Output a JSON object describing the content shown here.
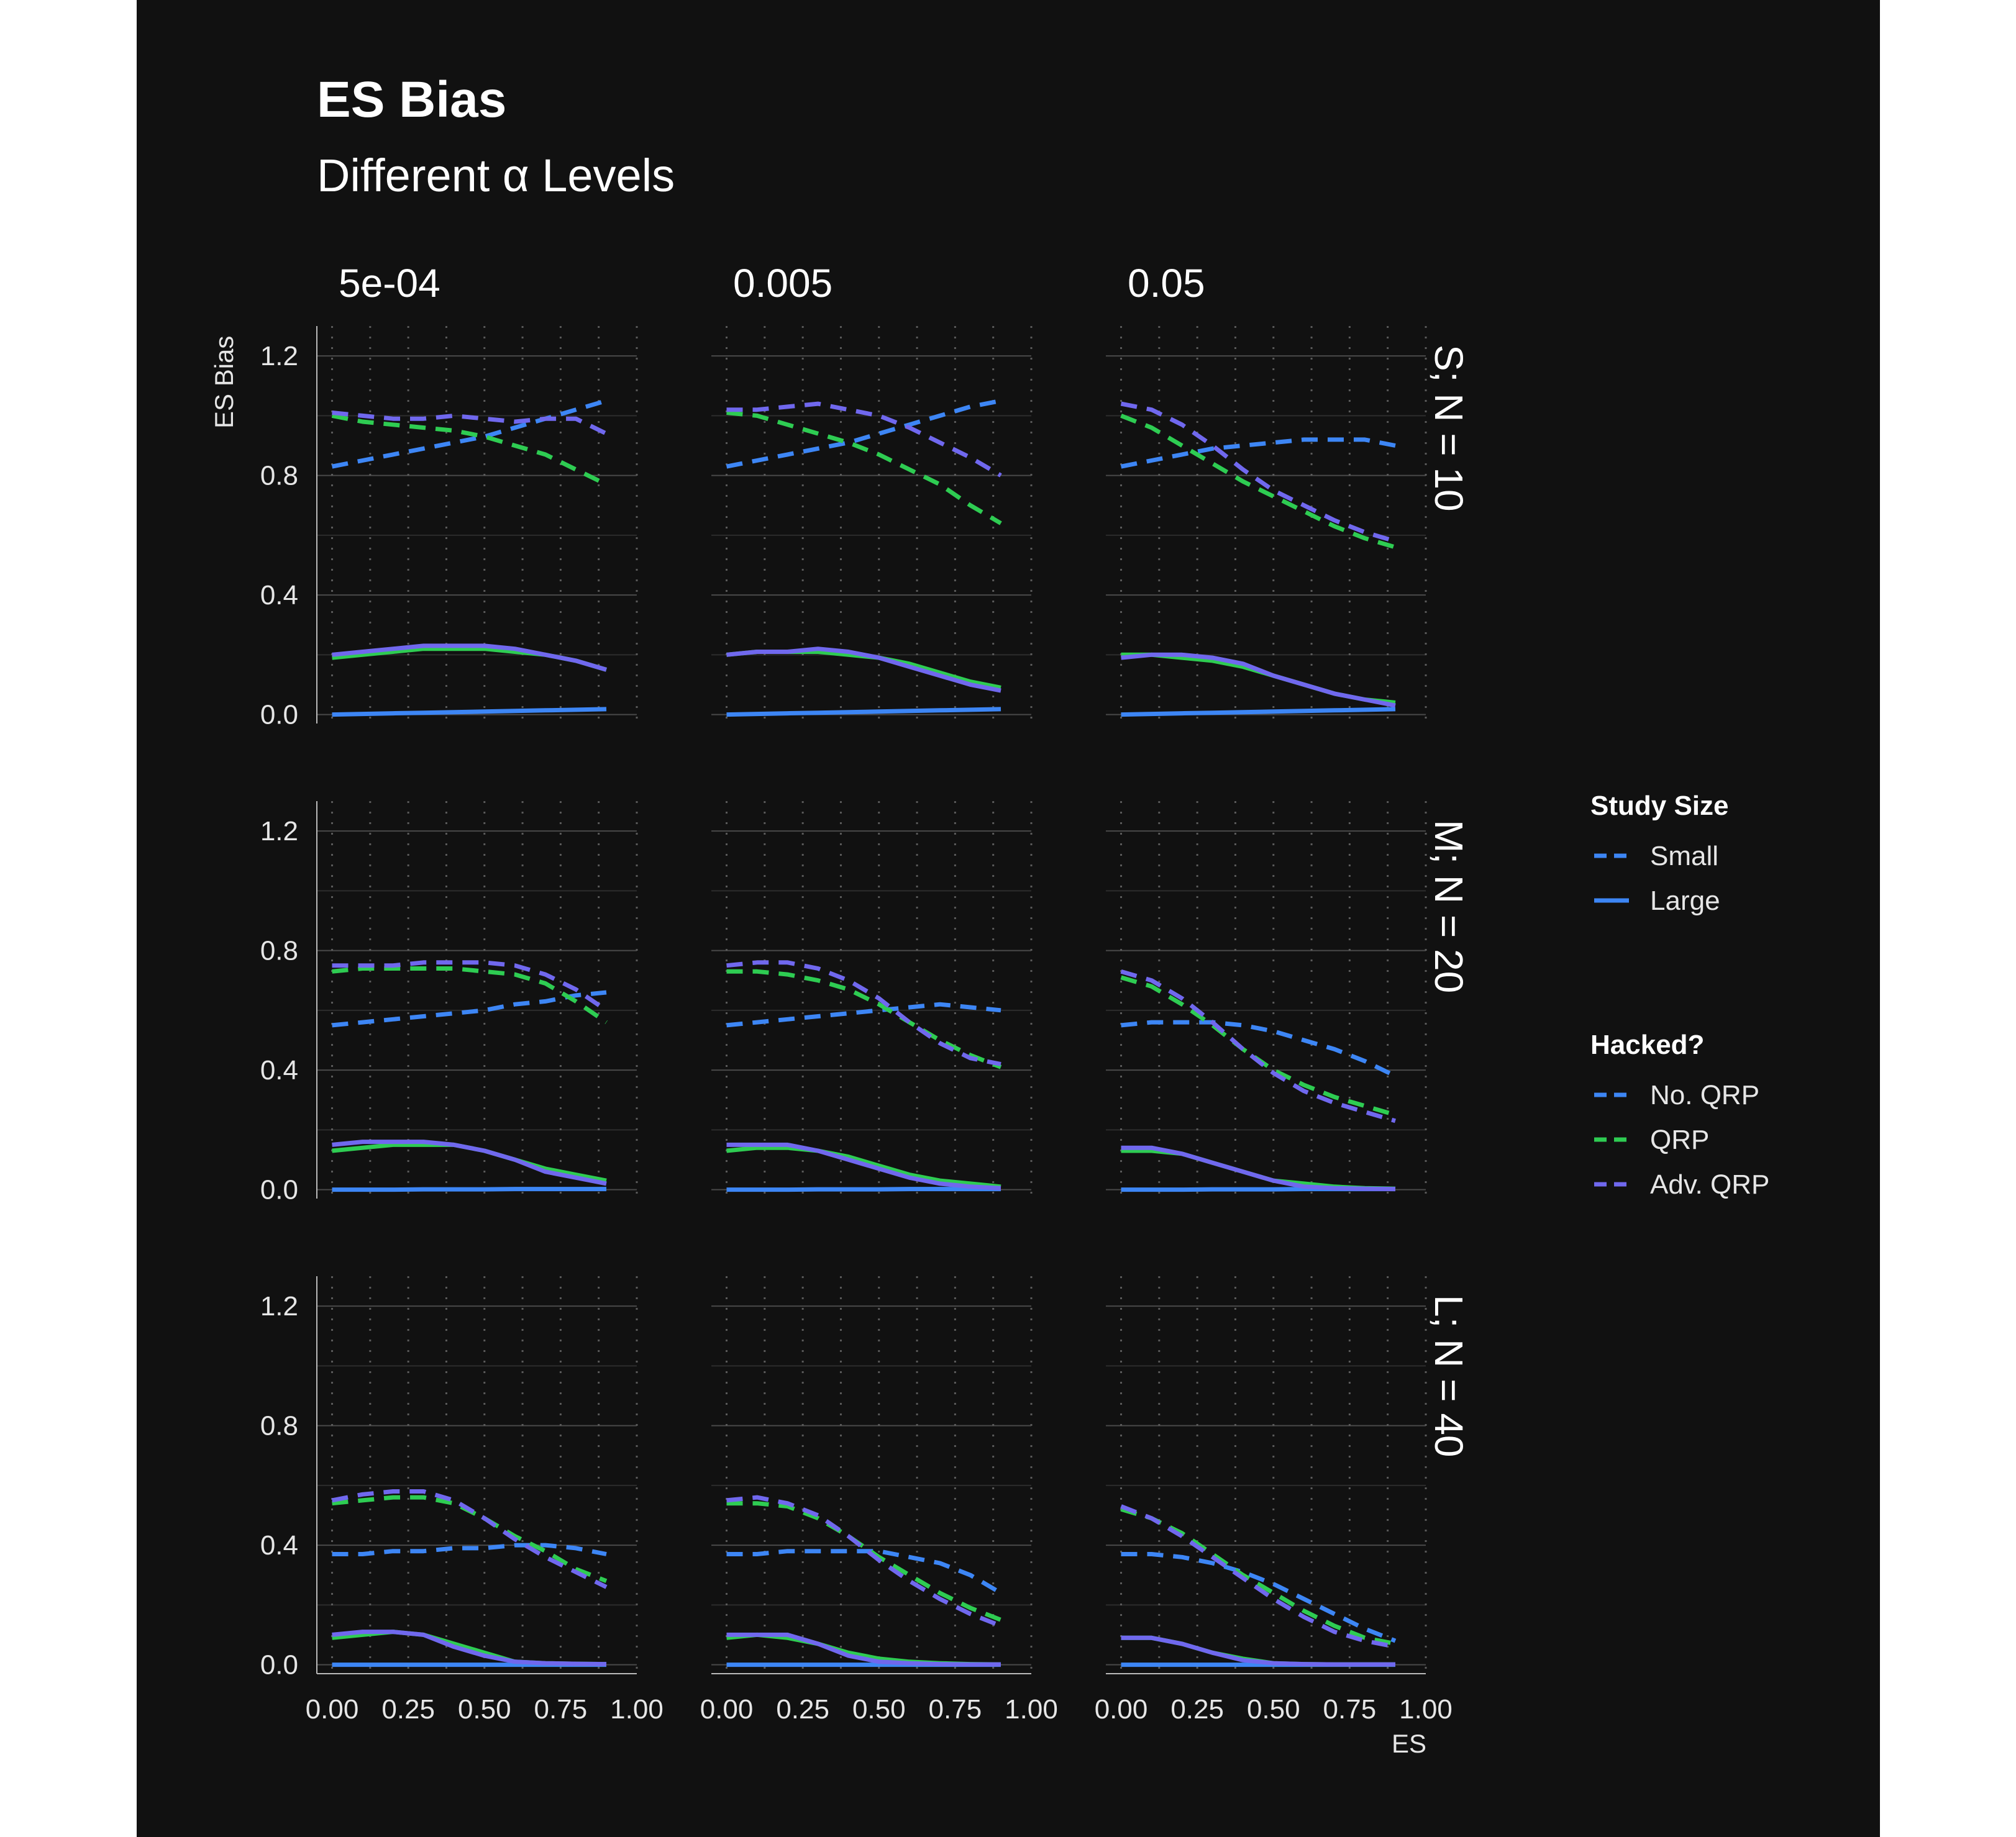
{
  "title": "ES Bias",
  "subtitle": "Different α Levels",
  "colors": {
    "background": "#111111",
    "no_qrp": "#3d86f5",
    "qrp": "#2ecc52",
    "adv_qrp": "#7068ee",
    "grid": "#4a4a4a",
    "axis": "#bbbbbb"
  },
  "chart_data": {
    "type": "line",
    "xlabel": "ES",
    "ylabel": "ES Bias",
    "xlim": [
      -0.05,
      1.0
    ],
    "ylim": [
      -0.03,
      1.3
    ],
    "x_ticks": [
      "0.00",
      "0.25",
      "0.50",
      "0.75",
      "1.00"
    ],
    "y_ticks": [
      "0.0",
      "0.4",
      "0.8",
      "1.2"
    ],
    "grid": true,
    "facet_columns": [
      "5e-04",
      "0.005",
      "0.05"
    ],
    "facet_rows": [
      "S; N = 10",
      "M; N = 20",
      "L; N = 40"
    ],
    "x": [
      0.0,
      0.1,
      0.2,
      0.3,
      0.4,
      0.5,
      0.6,
      0.7,
      0.8,
      0.9
    ],
    "linetype_legend": {
      "title": "Study Size",
      "entries": [
        "Small",
        "Large"
      ]
    },
    "color_legend": {
      "title": "Hacked?",
      "entries": [
        "No. QRP",
        "QRP",
        "Adv. QRP"
      ]
    },
    "panels": [
      {
        "column": "5e-04",
        "row": "S; N = 10",
        "series": [
          {
            "name": "No. QRP",
            "size": "Small",
            "values": [
              0.83,
              0.85,
              0.87,
              0.89,
              0.91,
              0.93,
              0.96,
              0.99,
              1.02,
              1.05
            ]
          },
          {
            "name": "QRP",
            "size": "Small",
            "values": [
              1.0,
              0.98,
              0.97,
              0.96,
              0.95,
              0.93,
              0.9,
              0.87,
              0.82,
              0.77
            ]
          },
          {
            "name": "Adv. QRP",
            "size": "Small",
            "values": [
              1.01,
              1.0,
              0.99,
              0.99,
              1.0,
              0.99,
              0.98,
              0.99,
              0.99,
              0.94
            ]
          },
          {
            "name": "No. QRP",
            "size": "Large",
            "values": [
              0.0,
              0.002,
              0.004,
              0.006,
              0.008,
              0.01,
              0.012,
              0.014,
              0.016,
              0.018
            ]
          },
          {
            "name": "QRP",
            "size": "Large",
            "values": [
              0.19,
              0.2,
              0.21,
              0.22,
              0.22,
              0.22,
              0.21,
              0.2,
              0.18,
              0.15
            ]
          },
          {
            "name": "Adv. QRP",
            "size": "Large",
            "values": [
              0.2,
              0.21,
              0.22,
              0.23,
              0.23,
              0.23,
              0.22,
              0.2,
              0.18,
              0.15
            ]
          }
        ]
      },
      {
        "column": "0.005",
        "row": "S; N = 10",
        "series": [
          {
            "name": "No. QRP",
            "size": "Small",
            "values": [
              0.83,
              0.85,
              0.87,
              0.89,
              0.91,
              0.94,
              0.97,
              1.0,
              1.03,
              1.05
            ]
          },
          {
            "name": "QRP",
            "size": "Small",
            "values": [
              1.01,
              1.0,
              0.97,
              0.94,
              0.91,
              0.87,
              0.82,
              0.77,
              0.7,
              0.64
            ]
          },
          {
            "name": "Adv. QRP",
            "size": "Small",
            "values": [
              1.02,
              1.02,
              1.03,
              1.04,
              1.02,
              1.0,
              0.96,
              0.91,
              0.86,
              0.8
            ]
          },
          {
            "name": "No. QRP",
            "size": "Large",
            "values": [
              0.0,
              0.002,
              0.004,
              0.006,
              0.008,
              0.01,
              0.012,
              0.014,
              0.016,
              0.018
            ]
          },
          {
            "name": "QRP",
            "size": "Large",
            "values": [
              0.2,
              0.21,
              0.21,
              0.21,
              0.2,
              0.19,
              0.17,
              0.14,
              0.11,
              0.09
            ]
          },
          {
            "name": "Adv. QRP",
            "size": "Large",
            "values": [
              0.2,
              0.21,
              0.21,
              0.22,
              0.21,
              0.19,
              0.16,
              0.13,
              0.1,
              0.08
            ]
          }
        ]
      },
      {
        "column": "0.05",
        "row": "S; N = 10",
        "series": [
          {
            "name": "No. QRP",
            "size": "Small",
            "values": [
              0.83,
              0.85,
              0.87,
              0.89,
              0.9,
              0.91,
              0.92,
              0.92,
              0.92,
              0.9
            ]
          },
          {
            "name": "QRP",
            "size": "Small",
            "values": [
              1.0,
              0.96,
              0.9,
              0.84,
              0.78,
              0.73,
              0.68,
              0.63,
              0.59,
              0.56
            ]
          },
          {
            "name": "Adv. QRP",
            "size": "Small",
            "values": [
              1.04,
              1.02,
              0.97,
              0.9,
              0.82,
              0.75,
              0.7,
              0.65,
              0.61,
              0.58
            ]
          },
          {
            "name": "No. QRP",
            "size": "Large",
            "values": [
              0.0,
              0.002,
              0.004,
              0.006,
              0.008,
              0.01,
              0.012,
              0.014,
              0.016,
              0.018
            ]
          },
          {
            "name": "QRP",
            "size": "Large",
            "values": [
              0.2,
              0.2,
              0.19,
              0.18,
              0.16,
              0.13,
              0.1,
              0.07,
              0.05,
              0.04
            ]
          },
          {
            "name": "Adv. QRP",
            "size": "Large",
            "values": [
              0.19,
              0.2,
              0.2,
              0.19,
              0.17,
              0.13,
              0.1,
              0.07,
              0.05,
              0.03
            ]
          }
        ]
      },
      {
        "column": "5e-04",
        "row": "M; N = 20",
        "series": [
          {
            "name": "No. QRP",
            "size": "Small",
            "values": [
              0.55,
              0.56,
              0.57,
              0.58,
              0.59,
              0.6,
              0.62,
              0.63,
              0.65,
              0.66
            ]
          },
          {
            "name": "QRP",
            "size": "Small",
            "values": [
              0.73,
              0.74,
              0.74,
              0.74,
              0.74,
              0.73,
              0.72,
              0.69,
              0.63,
              0.56
            ]
          },
          {
            "name": "Adv. QRP",
            "size": "Small",
            "values": [
              0.75,
              0.75,
              0.75,
              0.76,
              0.76,
              0.76,
              0.75,
              0.72,
              0.67,
              0.6
            ]
          },
          {
            "name": "No. QRP",
            "size": "Large",
            "values": [
              0.0,
              0.0,
              0.0,
              0.001,
              0.001,
              0.001,
              0.002,
              0.002,
              0.002,
              0.002
            ]
          },
          {
            "name": "QRP",
            "size": "Large",
            "values": [
              0.13,
              0.14,
              0.15,
              0.15,
              0.15,
              0.13,
              0.1,
              0.07,
              0.05,
              0.03
            ]
          },
          {
            "name": "Adv. QRP",
            "size": "Large",
            "values": [
              0.15,
              0.16,
              0.16,
              0.16,
              0.15,
              0.13,
              0.1,
              0.06,
              0.04,
              0.02
            ]
          }
        ]
      },
      {
        "column": "0.005",
        "row": "M; N = 20",
        "series": [
          {
            "name": "No. QRP",
            "size": "Small",
            "values": [
              0.55,
              0.56,
              0.57,
              0.58,
              0.59,
              0.6,
              0.61,
              0.62,
              0.61,
              0.6
            ]
          },
          {
            "name": "QRP",
            "size": "Small",
            "values": [
              0.73,
              0.73,
              0.72,
              0.7,
              0.67,
              0.62,
              0.56,
              0.5,
              0.45,
              0.41
            ]
          },
          {
            "name": "Adv. QRP",
            "size": "Small",
            "values": [
              0.75,
              0.76,
              0.76,
              0.74,
              0.7,
              0.64,
              0.56,
              0.49,
              0.44,
              0.42
            ]
          },
          {
            "name": "No. QRP",
            "size": "Large",
            "values": [
              0.0,
              0.0,
              0.0,
              0.001,
              0.001,
              0.001,
              0.002,
              0.002,
              0.002,
              0.002
            ]
          },
          {
            "name": "QRP",
            "size": "Large",
            "values": [
              0.13,
              0.14,
              0.14,
              0.13,
              0.11,
              0.08,
              0.05,
              0.03,
              0.02,
              0.01
            ]
          },
          {
            "name": "Adv. QRP",
            "size": "Large",
            "values": [
              0.15,
              0.15,
              0.15,
              0.13,
              0.1,
              0.07,
              0.04,
              0.02,
              0.01,
              0.005
            ]
          }
        ]
      },
      {
        "column": "0.05",
        "row": "M; N = 20",
        "series": [
          {
            "name": "No. QRP",
            "size": "Small",
            "values": [
              0.55,
              0.56,
              0.56,
              0.56,
              0.55,
              0.53,
              0.5,
              0.47,
              0.43,
              0.38
            ]
          },
          {
            "name": "QRP",
            "size": "Small",
            "values": [
              0.71,
              0.68,
              0.62,
              0.55,
              0.47,
              0.4,
              0.35,
              0.31,
              0.28,
              0.25
            ]
          },
          {
            "name": "Adv. QRP",
            "size": "Small",
            "values": [
              0.73,
              0.7,
              0.64,
              0.56,
              0.47,
              0.39,
              0.33,
              0.29,
              0.26,
              0.23
            ]
          },
          {
            "name": "No. QRP",
            "size": "Large",
            "values": [
              0.0,
              0.0,
              0.0,
              0.001,
              0.001,
              0.001,
              0.002,
              0.002,
              0.002,
              0.002
            ]
          },
          {
            "name": "QRP",
            "size": "Large",
            "values": [
              0.13,
              0.13,
              0.12,
              0.09,
              0.06,
              0.03,
              0.02,
              0.01,
              0.005,
              0.003
            ]
          },
          {
            "name": "Adv. QRP",
            "size": "Large",
            "values": [
              0.14,
              0.14,
              0.12,
              0.09,
              0.06,
              0.03,
              0.01,
              0.005,
              0.003,
              0.002
            ]
          }
        ]
      },
      {
        "column": "5e-04",
        "row": "L; N = 40",
        "series": [
          {
            "name": "No. QRP",
            "size": "Small",
            "values": [
              0.37,
              0.37,
              0.38,
              0.38,
              0.39,
              0.39,
              0.4,
              0.4,
              0.39,
              0.37
            ]
          },
          {
            "name": "QRP",
            "size": "Small",
            "values": [
              0.54,
              0.55,
              0.56,
              0.56,
              0.54,
              0.49,
              0.43,
              0.38,
              0.32,
              0.28
            ]
          },
          {
            "name": "Adv. QRP",
            "size": "Small",
            "values": [
              0.55,
              0.57,
              0.58,
              0.58,
              0.55,
              0.49,
              0.42,
              0.36,
              0.31,
              0.26
            ]
          },
          {
            "name": "No. QRP",
            "size": "Large",
            "values": [
              0.0,
              0.0,
              0.0,
              0.0,
              0.0,
              0.0,
              0.0,
              0.0,
              0.0,
              0.0
            ]
          },
          {
            "name": "QRP",
            "size": "Large",
            "values": [
              0.09,
              0.1,
              0.11,
              0.1,
              0.07,
              0.04,
              0.01,
              0.005,
              0.003,
              0.002
            ]
          },
          {
            "name": "Adv. QRP",
            "size": "Large",
            "values": [
              0.1,
              0.11,
              0.11,
              0.1,
              0.06,
              0.03,
              0.01,
              0.005,
              0.003,
              0.002
            ]
          }
        ]
      },
      {
        "column": "0.005",
        "row": "L; N = 40",
        "series": [
          {
            "name": "No. QRP",
            "size": "Small",
            "values": [
              0.37,
              0.37,
              0.38,
              0.38,
              0.38,
              0.38,
              0.36,
              0.34,
              0.3,
              0.24
            ]
          },
          {
            "name": "QRP",
            "size": "Small",
            "values": [
              0.54,
              0.54,
              0.53,
              0.49,
              0.43,
              0.36,
              0.3,
              0.24,
              0.19,
              0.15
            ]
          },
          {
            "name": "Adv. QRP",
            "size": "Small",
            "values": [
              0.55,
              0.56,
              0.54,
              0.5,
              0.43,
              0.35,
              0.28,
              0.22,
              0.17,
              0.13
            ]
          },
          {
            "name": "No. QRP",
            "size": "Large",
            "values": [
              0.0,
              0.0,
              0.0,
              0.0,
              0.0,
              0.0,
              0.0,
              0.0,
              0.0,
              0.0
            ]
          },
          {
            "name": "QRP",
            "size": "Large",
            "values": [
              0.09,
              0.1,
              0.09,
              0.07,
              0.04,
              0.02,
              0.01,
              0.005,
              0.002,
              0.001
            ]
          },
          {
            "name": "Adv. QRP",
            "size": "Large",
            "values": [
              0.1,
              0.1,
              0.1,
              0.07,
              0.03,
              0.01,
              0.005,
              0.002,
              0.001,
              0.001
            ]
          }
        ]
      },
      {
        "column": "0.05",
        "row": "L; N = 40",
        "series": [
          {
            "name": "No. QRP",
            "size": "Small",
            "values": [
              0.37,
              0.37,
              0.36,
              0.34,
              0.31,
              0.27,
              0.22,
              0.17,
              0.12,
              0.08
            ]
          },
          {
            "name": "QRP",
            "size": "Small",
            "values": [
              0.52,
              0.49,
              0.44,
              0.37,
              0.3,
              0.24,
              0.18,
              0.13,
              0.09,
              0.07
            ]
          },
          {
            "name": "Adv. QRP",
            "size": "Small",
            "values": [
              0.53,
              0.49,
              0.43,
              0.36,
              0.29,
              0.22,
              0.16,
              0.11,
              0.08,
              0.06
            ]
          },
          {
            "name": "No. QRP",
            "size": "Large",
            "values": [
              0.0,
              0.0,
              0.0,
              0.0,
              0.0,
              0.0,
              0.0,
              0.0,
              0.0,
              0.0
            ]
          },
          {
            "name": "QRP",
            "size": "Large",
            "values": [
              0.09,
              0.09,
              0.07,
              0.04,
              0.02,
              0.005,
              0.002,
              0.001,
              0.001,
              0.001
            ]
          },
          {
            "name": "Adv. QRP",
            "size": "Large",
            "values": [
              0.09,
              0.09,
              0.07,
              0.04,
              0.015,
              0.005,
              0.002,
              0.001,
              0.001,
              0.001
            ]
          }
        ]
      }
    ]
  }
}
